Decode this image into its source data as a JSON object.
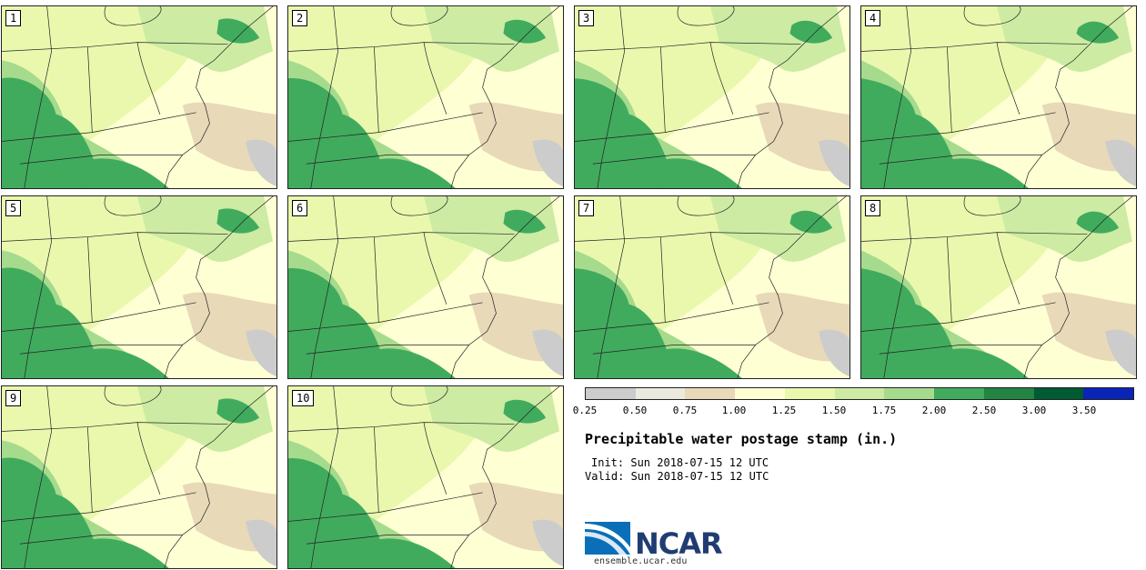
{
  "stamps": [
    "1",
    "2",
    "3",
    "4",
    "5",
    "6",
    "7",
    "8",
    "9",
    "10"
  ],
  "legend": {
    "colors": [
      "#e6e6e6",
      "#cccccc",
      "#eaeade",
      "#e8d9b8",
      "#ffffd4",
      "#eaf8ae",
      "#cdeba3",
      "#a6db8d",
      "#41ab5d",
      "#238443",
      "#005a32",
      "#0b24b8"
    ],
    "ticks": [
      "0.25",
      "0.50",
      "0.75",
      "1.00",
      "1.25",
      "1.50",
      "1.75",
      "2.00",
      "2.50",
      "3.00",
      "3.50"
    ]
  },
  "title": "Precipitable water postage stamp (in.)",
  "init": "Init: Sun 2018-07-15 12 UTC",
  "valid": "Valid: Sun 2018-07-15 12 UTC",
  "logo": {
    "name": "NCAR",
    "url": "ensemble.ucar.edu"
  }
}
